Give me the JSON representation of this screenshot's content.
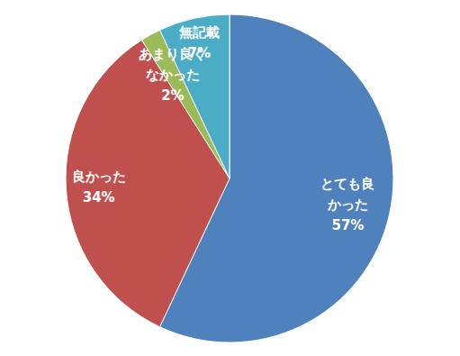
{
  "chart_data": {
    "type": "pie",
    "categories": [
      "とても良かった",
      "良かった",
      "あまり良くなかった",
      "無記載"
    ],
    "values": [
      57,
      34,
      2,
      7
    ],
    "value_labels": [
      "57%",
      "34%",
      "2%",
      "7%"
    ],
    "colors": [
      "#4f81bd",
      "#c0504d",
      "#9bbb59",
      "#4bacc6"
    ],
    "data_labels": true
  }
}
